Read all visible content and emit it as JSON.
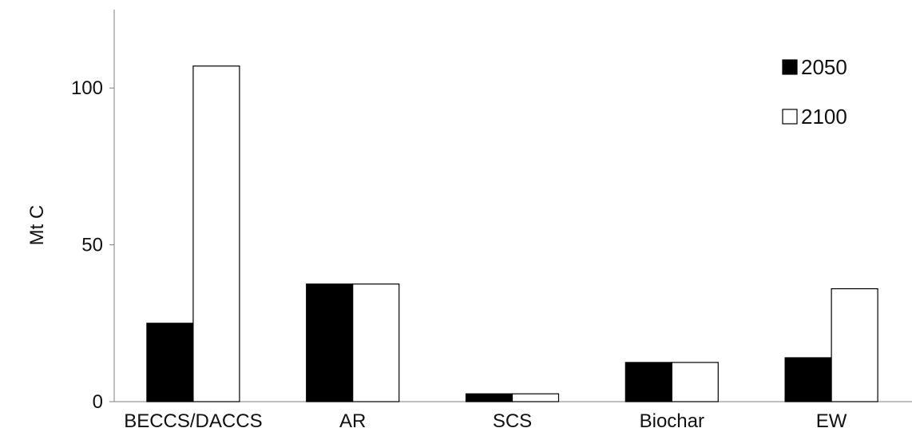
{
  "chart_data": {
    "type": "bar",
    "title": "",
    "xlabel": "",
    "ylabel": "Mt C",
    "ylim": [
      0,
      125
    ],
    "yticks": [
      0,
      50,
      100
    ],
    "grid": false,
    "legend_position": "top-right",
    "categories": [
      "BECCS/DACCS",
      "AR",
      "SCS",
      "Biochar",
      "EW"
    ],
    "series": [
      {
        "name": "2050",
        "color": "#000000",
        "values": [
          25,
          37.5,
          2.5,
          12.5,
          14
        ]
      },
      {
        "name": "2100",
        "color": "#ffffff",
        "values": [
          107,
          37.5,
          2.5,
          12.5,
          36
        ]
      }
    ]
  }
}
